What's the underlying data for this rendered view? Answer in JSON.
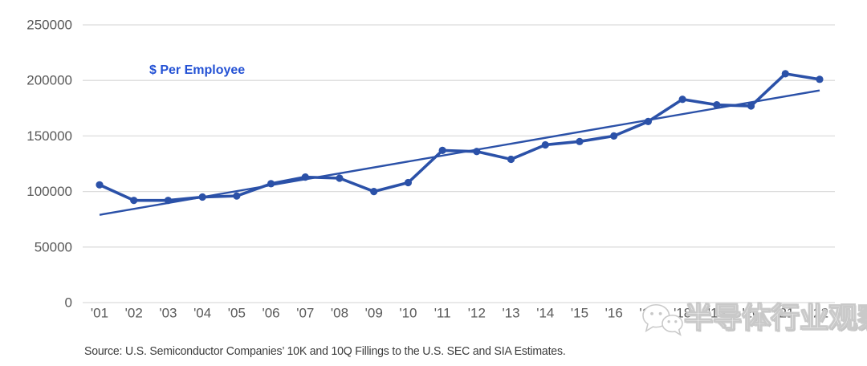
{
  "chart_data": {
    "type": "line",
    "title": "",
    "series_label": "$ Per Employee",
    "categories": [
      "'01",
      "'02",
      "'03",
      "'04",
      "'05",
      "'06",
      "'07",
      "'08",
      "'09",
      "'10",
      "'11",
      "'12",
      "'13",
      "'14",
      "'15",
      "'16",
      "'17",
      "'18",
      "'19",
      "'20",
      "'21",
      "'22"
    ],
    "series": [
      {
        "name": "$ Per Employee",
        "values": [
          106000,
          92000,
          92000,
          95000,
          96000,
          107000,
          113000,
          112000,
          100000,
          108000,
          137000,
          136000,
          129000,
          142000,
          145000,
          150000,
          163000,
          183000,
          178000,
          177000,
          206000,
          201000
        ]
      }
    ],
    "trendline": {
      "start": 79000,
      "end": 191000
    },
    "ylim": [
      0,
      250000
    ],
    "ytick_step": 50000,
    "yticks": [
      "0",
      "50000",
      "100000",
      "150000",
      "200000",
      "250000"
    ],
    "grid": "horizontal",
    "legend_position": "none",
    "colors": {
      "series": "#2b51a8",
      "trend": "#2b51a8",
      "series_label": "#2351d4",
      "axis_text": "#595959",
      "gridline": "#dcdcdc"
    }
  },
  "source": {
    "text": "Source: U.S. Semiconductor Companies’ 10K and 10Q Fillings to the U.S. SEC and SIA Estimates."
  },
  "watermark": {
    "icon": "wechat-icon",
    "text": "半导体行业观察"
  }
}
